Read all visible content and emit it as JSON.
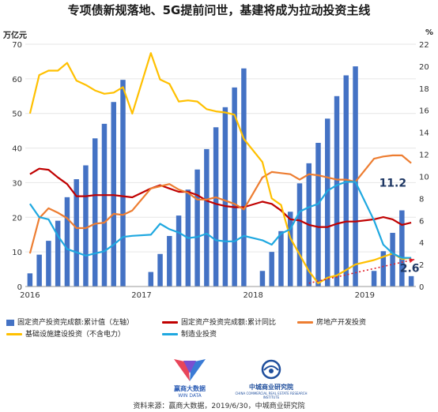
{
  "title": "专项债新规落地、5G提前问世，基建将成为拉动投资主线",
  "left_unit": "万亿元",
  "right_unit": "%",
  "legend": [
    {
      "label": "固定资产投资完成额:累计值（左轴）",
      "color": "#4472c4",
      "kind": "bar"
    },
    {
      "label": "固定资产投资完成额:累计同比",
      "color": "#c00000",
      "kind": "line"
    },
    {
      "label": "房地产开发投资",
      "color": "#ed7d31",
      "kind": "line"
    },
    {
      "label": "基础设施建设投资（不含电力）",
      "color": "#ffc000",
      "kind": "line"
    },
    {
      "label": "制造业投资",
      "color": "#1fa8e0",
      "kind": "line"
    }
  ],
  "annotations": {
    "realestate_last": "11.2",
    "infra_last": "2.6"
  },
  "logos": {
    "left": "赢商大数据",
    "left_sub": "WIN DATA",
    "right": "中城商业研究院",
    "right_sub": "CHINA COMMERCIAL REAL ESTATE RESEARCH INSTITUTE"
  },
  "source": "资料来源：赢商大数据，2019/6/30，中城商业研究院",
  "chart_data": {
    "type": "bar+line",
    "x": [
      "2016-01",
      "2016-02",
      "2016-03",
      "2016-04",
      "2016-05",
      "2016-06",
      "2016-07",
      "2016-08",
      "2016-09",
      "2016-10",
      "2016-11",
      "2016-12",
      "2017-01",
      "2017-02",
      "2017-03",
      "2017-04",
      "2017-05",
      "2017-06",
      "2017-07",
      "2017-08",
      "2017-09",
      "2017-10",
      "2017-11",
      "2017-12",
      "2018-01",
      "2018-02",
      "2018-03",
      "2018-04",
      "2018-05",
      "2018-06",
      "2018-07",
      "2018-08",
      "2018-09",
      "2018-10",
      "2018-11",
      "2018-12",
      "2019-01",
      "2019-02",
      "2019-03",
      "2019-04",
      "2019-05",
      "2019-06"
    ],
    "x_tick_labels": [
      "2016",
      "2017",
      "2018",
      "2019"
    ],
    "y_left": {
      "label": "万亿元",
      "ylim": [
        0,
        70
      ],
      "ticks": [
        0,
        10,
        20,
        30,
        40,
        50,
        60,
        70
      ]
    },
    "y_right": {
      "label": "%",
      "ylim": [
        0,
        22
      ],
      "ticks": [
        0,
        2,
        4,
        6,
        8,
        10,
        12,
        14,
        16,
        18,
        20,
        22
      ]
    },
    "series": [
      {
        "name": "固定资产投资完成额:累计值（左轴）",
        "axis": "left",
        "type": "bar",
        "values": [
          3.8,
          9.2,
          13.2,
          19,
          25.8,
          31,
          35,
          42.8,
          47,
          53.3,
          59.7,
          null,
          null,
          4.2,
          9.4,
          14.6,
          20.5,
          28,
          33.8,
          39.7,
          46,
          51.8,
          57.5,
          63,
          null,
          4.5,
          10,
          16,
          21.6,
          29.8,
          35.6,
          41.5,
          48.5,
          55,
          61,
          63.6,
          null,
          4.5,
          10.2,
          15.5,
          22,
          3
        ]
      },
      {
        "name": "固定资产投资完成额:累计同比",
        "axis": "right",
        "type": "line",
        "values": [
          10.2,
          10.7,
          10.6,
          9.9,
          9.3,
          8.2,
          8.2,
          8.3,
          8.3,
          8.3,
          8.2,
          8.1,
          null,
          8.9,
          9.2,
          8.9,
          8.6,
          8.6,
          8.3,
          7.8,
          7.5,
          7.3,
          7.2,
          7.2,
          null,
          7.7,
          7.5,
          6.9,
          6.1,
          6.0,
          5.6,
          5.4,
          5.4,
          5.7,
          5.9,
          5.9,
          null,
          6.1,
          6.3,
          6.1,
          5.6,
          5.8
        ]
      },
      {
        "name": "房地产开发投资",
        "axis": "right",
        "type": "line",
        "values": [
          3.0,
          6.2,
          7.1,
          6.7,
          6.2,
          5.3,
          5.3,
          5.7,
          5.8,
          6.6,
          6.5,
          6.9,
          null,
          8.9,
          9.1,
          9.3,
          8.8,
          8.5,
          7.9,
          7.9,
          8.1,
          7.8,
          7.5,
          7.0,
          null,
          9.9,
          10.4,
          10.3,
          10.2,
          9.7,
          10.2,
          10.1,
          9.9,
          9.7,
          9.7,
          9.5,
          null,
          11.6,
          11.8,
          11.9,
          11.9,
          11.2
        ]
      },
      {
        "name": "基础设施建设投资（不含电力）",
        "axis": "right",
        "type": "line",
        "values": [
          15.7,
          19.2,
          19.6,
          19.6,
          20.3,
          18.7,
          18.3,
          17.8,
          17.5,
          17.6,
          18.1,
          15.7,
          null,
          21.2,
          18.8,
          18.4,
          16.8,
          16.9,
          16.8,
          16.1,
          15.9,
          15.8,
          15.6,
          13.4,
          null,
          11.3,
          8.0,
          7.4,
          4.4,
          2.9,
          1.4,
          0.3,
          0.8,
          1.0,
          1.5,
          2.0,
          null,
          2.4,
          2.7,
          3.0,
          2.5,
          2.6
        ]
      },
      {
        "name": "制造业投资",
        "axis": "right",
        "type": "line",
        "values": [
          7.5,
          6.3,
          6.1,
          4.6,
          3.4,
          3.1,
          2.8,
          3.0,
          3.2,
          3.8,
          4.5,
          4.6,
          null,
          4.7,
          5.7,
          5.2,
          4.9,
          4.4,
          4.5,
          4.8,
          4.2,
          4.1,
          4.1,
          4.6,
          null,
          4.2,
          3.8,
          4.8,
          5.2,
          6.8,
          7.2,
          7.5,
          8.7,
          9.2,
          9.5,
          9.5,
          null,
          6.0,
          3.8,
          3.0,
          2.6,
          2.6
        ]
      }
    ]
  }
}
